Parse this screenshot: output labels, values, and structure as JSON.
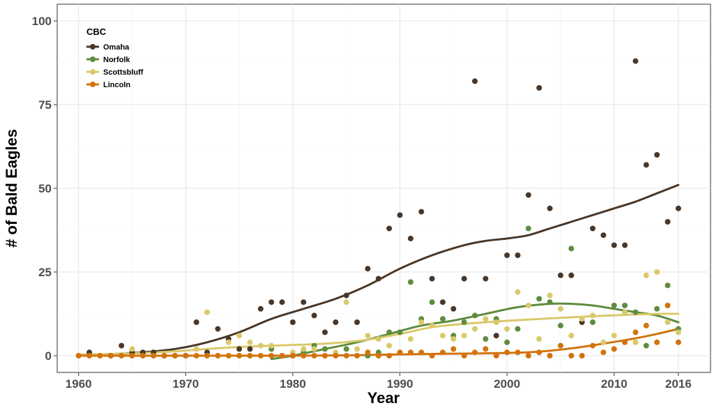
{
  "chart_data": {
    "type": "scatter",
    "xlabel": "Year",
    "ylabel": "# of Bald Eagles",
    "xlim": [
      1958,
      2019
    ],
    "ylim": [
      -5,
      105
    ],
    "x_ticks": [
      1960,
      1970,
      1980,
      1990,
      2000,
      2010,
      2016
    ],
    "y_ticks": [
      0,
      25,
      50,
      75,
      100
    ],
    "grid": true,
    "legend": {
      "title": "CBC",
      "position": "top-left"
    },
    "series": [
      {
        "name": "Omaha",
        "color": "#4a3728",
        "points": [
          [
            1961,
            1
          ],
          [
            1963,
            0
          ],
          [
            1964,
            3
          ],
          [
            1965,
            1
          ],
          [
            1966,
            1
          ],
          [
            1967,
            1
          ],
          [
            1968,
            0
          ],
          [
            1969,
            0
          ],
          [
            1970,
            0
          ],
          [
            1971,
            10
          ],
          [
            1972,
            1
          ],
          [
            1973,
            8
          ],
          [
            1974,
            5
          ],
          [
            1975,
            2
          ],
          [
            1976,
            2
          ],
          [
            1977,
            14
          ],
          [
            1978,
            16
          ],
          [
            1979,
            16
          ],
          [
            1980,
            10
          ],
          [
            1981,
            16
          ],
          [
            1982,
            12
          ],
          [
            1983,
            7
          ],
          [
            1984,
            10
          ],
          [
            1985,
            18
          ],
          [
            1986,
            10
          ],
          [
            1987,
            26
          ],
          [
            1988,
            23
          ],
          [
            1989,
            38
          ],
          [
            1990,
            42
          ],
          [
            1991,
            35
          ],
          [
            1992,
            43
          ],
          [
            1993,
            23
          ],
          [
            1994,
            16
          ],
          [
            1995,
            14
          ],
          [
            1996,
            23
          ],
          [
            1997,
            82
          ],
          [
            1998,
            23
          ],
          [
            1999,
            6
          ],
          [
            2000,
            30
          ],
          [
            2001,
            30
          ],
          [
            2002,
            48
          ],
          [
            2003,
            80
          ],
          [
            2004,
            44
          ],
          [
            2005,
            24
          ],
          [
            2006,
            24
          ],
          [
            2007,
            10
          ],
          [
            2008,
            38
          ],
          [
            2009,
            36
          ],
          [
            2010,
            33
          ],
          [
            2011,
            33
          ],
          [
            2012,
            88
          ],
          [
            2013,
            57
          ],
          [
            2014,
            60
          ],
          [
            2015,
            40
          ],
          [
            2016,
            44
          ]
        ],
        "trend": [
          [
            1960,
            0.3
          ],
          [
            1963,
            0.5
          ],
          [
            1966,
            1
          ],
          [
            1969,
            2
          ],
          [
            1972,
            4
          ],
          [
            1975,
            7
          ],
          [
            1978,
            11
          ],
          [
            1981,
            14
          ],
          [
            1984,
            17
          ],
          [
            1987,
            21
          ],
          [
            1990,
            26
          ],
          [
            1993,
            30
          ],
          [
            1996,
            33
          ],
          [
            1998,
            34.3
          ],
          [
            2000,
            35
          ],
          [
            2002,
            36
          ],
          [
            2004,
            38
          ],
          [
            2006,
            40
          ],
          [
            2008,
            42
          ],
          [
            2010,
            44
          ],
          [
            2012,
            46
          ],
          [
            2014,
            48.5
          ],
          [
            2016,
            51
          ]
        ]
      },
      {
        "name": "Norfolk",
        "color": "#5e8c3e",
        "points": [
          [
            1978,
            2
          ],
          [
            1980,
            0
          ],
          [
            1981,
            1
          ],
          [
            1982,
            3
          ],
          [
            1983,
            2
          ],
          [
            1985,
            2
          ],
          [
            1987,
            0
          ],
          [
            1988,
            1
          ],
          [
            1989,
            7
          ],
          [
            1990,
            7
          ],
          [
            1991,
            22
          ],
          [
            1992,
            11
          ],
          [
            1993,
            16
          ],
          [
            1994,
            11
          ],
          [
            1995,
            6
          ],
          [
            1996,
            10
          ],
          [
            1997,
            12
          ],
          [
            1998,
            5
          ],
          [
            1999,
            11
          ],
          [
            2000,
            4
          ],
          [
            2001,
            8
          ],
          [
            2002,
            38
          ],
          [
            2003,
            17
          ],
          [
            2004,
            16
          ],
          [
            2005,
            9
          ],
          [
            2006,
            32
          ],
          [
            2008,
            10
          ],
          [
            2010,
            15
          ],
          [
            2011,
            15
          ],
          [
            2012,
            13
          ],
          [
            2013,
            3
          ],
          [
            2014,
            14
          ],
          [
            2015,
            21
          ],
          [
            2016,
            8
          ]
        ],
        "trend": [
          [
            1978,
            -1
          ],
          [
            1980,
            0
          ],
          [
            1983,
            2
          ],
          [
            1986,
            4
          ],
          [
            1989,
            6.5
          ],
          [
            1992,
            9
          ],
          [
            1995,
            10.5
          ],
          [
            1998,
            12.5
          ],
          [
            2001,
            14.5
          ],
          [
            2004,
            15.5
          ],
          [
            2006,
            15.5
          ],
          [
            2008,
            15
          ],
          [
            2010,
            14
          ],
          [
            2012,
            13
          ],
          [
            2014,
            12
          ],
          [
            2016,
            10
          ]
        ]
      },
      {
        "name": "Scottsbluff",
        "color": "#d9c96b",
        "points": [
          [
            1960,
            0
          ],
          [
            1962,
            0
          ],
          [
            1965,
            2
          ],
          [
            1967,
            0
          ],
          [
            1971,
            2
          ],
          [
            1972,
            13
          ],
          [
            1973,
            0
          ],
          [
            1974,
            4
          ],
          [
            1975,
            6
          ],
          [
            1976,
            4
          ],
          [
            1977,
            3
          ],
          [
            1978,
            3
          ],
          [
            1979,
            0
          ],
          [
            1980,
            1
          ],
          [
            1981,
            2
          ],
          [
            1982,
            2
          ],
          [
            1983,
            0
          ],
          [
            1984,
            1
          ],
          [
            1985,
            16
          ],
          [
            1986,
            2
          ],
          [
            1987,
            6
          ],
          [
            1988,
            5
          ],
          [
            1989,
            3
          ],
          [
            1990,
            1
          ],
          [
            1991,
            5
          ],
          [
            1992,
            10
          ],
          [
            1993,
            9
          ],
          [
            1994,
            6
          ],
          [
            1995,
            5
          ],
          [
            1996,
            6
          ],
          [
            1997,
            8
          ],
          [
            1998,
            11
          ],
          [
            1999,
            10
          ],
          [
            2000,
            8
          ],
          [
            2001,
            19
          ],
          [
            2002,
            15
          ],
          [
            2003,
            5
          ],
          [
            2004,
            18
          ],
          [
            2005,
            14
          ],
          [
            2006,
            6
          ],
          [
            2007,
            11
          ],
          [
            2008,
            12
          ],
          [
            2009,
            4
          ],
          [
            2010,
            6
          ],
          [
            2011,
            13
          ],
          [
            2012,
            4
          ],
          [
            2013,
            24
          ],
          [
            2014,
            25
          ],
          [
            2015,
            10
          ],
          [
            2016,
            7
          ]
        ],
        "trend": [
          [
            1960,
            0.3
          ],
          [
            1963,
            0.5
          ],
          [
            1966,
            0.8
          ],
          [
            1969,
            1.3
          ],
          [
            1972,
            2
          ],
          [
            1975,
            2.6
          ],
          [
            1978,
            3
          ],
          [
            1981,
            3.3
          ],
          [
            1984,
            3.8
          ],
          [
            1987,
            4.8
          ],
          [
            1990,
            6.5
          ],
          [
            1993,
            8.5
          ],
          [
            1996,
            9.5
          ],
          [
            1999,
            10.2
          ],
          [
            2002,
            10.8
          ],
          [
            2005,
            11.3
          ],
          [
            2008,
            11.8
          ],
          [
            2011,
            12.2
          ],
          [
            2014,
            12.5
          ],
          [
            2016,
            12.5
          ]
        ]
      },
      {
        "name": "Lincoln",
        "color": "#d2730e",
        "points": [
          [
            1960,
            0
          ],
          [
            1961,
            0
          ],
          [
            1962,
            0
          ],
          [
            1963,
            0
          ],
          [
            1964,
            0
          ],
          [
            1965,
            0
          ],
          [
            1966,
            0
          ],
          [
            1967,
            0
          ],
          [
            1968,
            0
          ],
          [
            1969,
            0
          ],
          [
            1970,
            0
          ],
          [
            1971,
            0
          ],
          [
            1972,
            0
          ],
          [
            1973,
            0
          ],
          [
            1974,
            0
          ],
          [
            1975,
            0
          ],
          [
            1976,
            0
          ],
          [
            1977,
            0
          ],
          [
            1978,
            0
          ],
          [
            1979,
            0
          ],
          [
            1980,
            0
          ],
          [
            1981,
            0
          ],
          [
            1982,
            0
          ],
          [
            1983,
            0
          ],
          [
            1984,
            0
          ],
          [
            1985,
            0
          ],
          [
            1986,
            0
          ],
          [
            1987,
            1
          ],
          [
            1988,
            0
          ],
          [
            1989,
            0
          ],
          [
            1990,
            1
          ],
          [
            1991,
            1
          ],
          [
            1992,
            1
          ],
          [
            1993,
            0
          ],
          [
            1994,
            1
          ],
          [
            1995,
            2
          ],
          [
            1996,
            0
          ],
          [
            1997,
            1
          ],
          [
            1998,
            2
          ],
          [
            1999,
            0
          ],
          [
            2000,
            1
          ],
          [
            2001,
            1
          ],
          [
            2002,
            0
          ],
          [
            2003,
            1
          ],
          [
            2004,
            0
          ],
          [
            2005,
            3
          ],
          [
            2006,
            0
          ],
          [
            2007,
            0
          ],
          [
            2008,
            3
          ],
          [
            2009,
            1
          ],
          [
            2010,
            2
          ],
          [
            2011,
            4
          ],
          [
            2012,
            7
          ],
          [
            2013,
            9
          ],
          [
            2014,
            4
          ],
          [
            2015,
            15
          ],
          [
            2016,
            4
          ]
        ],
        "trend": [
          [
            1960,
            0
          ],
          [
            1965,
            0
          ],
          [
            1970,
            0
          ],
          [
            1975,
            0
          ],
          [
            1980,
            0
          ],
          [
            1985,
            0.1
          ],
          [
            1990,
            0.4
          ],
          [
            1995,
            0.6
          ],
          [
            2000,
            0.8
          ],
          [
            2003,
            1.2
          ],
          [
            2006,
            2.2
          ],
          [
            2009,
            3.6
          ],
          [
            2012,
            5.2
          ],
          [
            2014,
            6.5
          ],
          [
            2016,
            8
          ]
        ]
      }
    ]
  }
}
